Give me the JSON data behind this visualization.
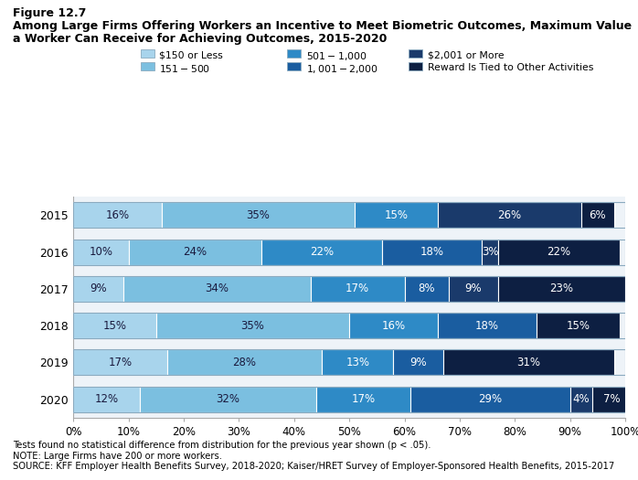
{
  "title_line1": "Figure 12.7",
  "title_line2a": "Among Large Firms Offering Workers an Incentive to Meet Biometric Outcomes, Maximum Value",
  "title_line2b": "a Worker Can Receive for Achieving Outcomes, 2015-2020",
  "years": [
    "2015",
    "2016",
    "2017",
    "2018",
    "2019",
    "2020"
  ],
  "categories": [
    "$150 or Less",
    "$151 - $500",
    "$501 - $1,000",
    "$1,001 - $2,000",
    "$2,001 or More",
    "Reward Is Tied to Other Activities"
  ],
  "colors": [
    "#a8d4ec",
    "#7bbfe0",
    "#2e8ac6",
    "#1a5da0",
    "#1a3a6b",
    "#0d1f42"
  ],
  "data": {
    "2015": [
      16,
      35,
      15,
      0,
      26,
      6
    ],
    "2016": [
      10,
      24,
      22,
      18,
      3,
      22
    ],
    "2017": [
      9,
      34,
      17,
      8,
      9,
      23
    ],
    "2018": [
      15,
      35,
      16,
      18,
      0,
      15
    ],
    "2019": [
      17,
      28,
      13,
      9,
      0,
      31
    ],
    "2020": [
      12,
      32,
      17,
      29,
      4,
      7
    ]
  },
  "text_colors": [
    "#1a1a3e",
    "#1a1a3e",
    "white",
    "white",
    "white",
    "white"
  ],
  "footnotes": [
    "Tests found no statistical difference from distribution for the previous year shown (p < .05).",
    "NOTE: Large Firms have 200 or more workers.",
    "SOURCE: KFF Employer Health Benefits Survey, 2018-2020; Kaiser/HRET Survey of Employer-Sponsored Health Benefits, 2015-2017"
  ]
}
